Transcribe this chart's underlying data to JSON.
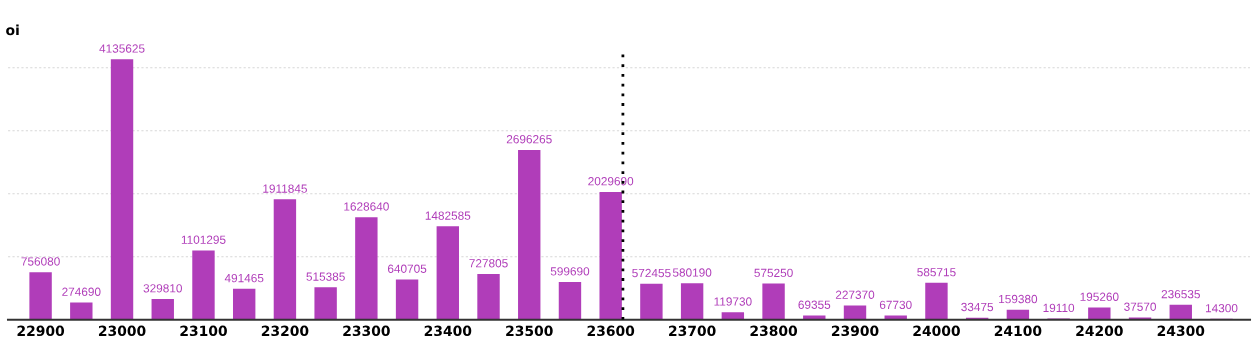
{
  "chart_data": {
    "type": "bar",
    "ylabel": "oi",
    "x": [
      22900,
      22950,
      23000,
      23050,
      23100,
      23150,
      23200,
      23250,
      23300,
      23350,
      23400,
      23450,
      23500,
      23550,
      23600,
      23650,
      23700,
      23750,
      23800,
      23850,
      23900,
      23950,
      24000,
      24050,
      24100,
      24150,
      24200,
      24250,
      24300,
      24350
    ],
    "values": [
      756080,
      274690,
      4135625,
      329810,
      1101295,
      491465,
      1911845,
      515385,
      1628640,
      640705,
      1482585,
      727805,
      2696265,
      599690,
      2029690,
      572455,
      580190,
      119730,
      575250,
      69355,
      227370,
      67730,
      585715,
      33475,
      159380,
      19110,
      195260,
      37570,
      236535,
      14300
    ],
    "color": "#b03db9",
    "data_labels": true,
    "xlim": [
      22860,
      24385
    ],
    "xticks": [
      22900,
      23000,
      23100,
      23200,
      23300,
      23400,
      23500,
      23600,
      23700,
      23800,
      23900,
      24000,
      24100,
      24200,
      24300
    ],
    "yticks": [
      {
        "value": 0,
        "label": null
      },
      {
        "value": 1000000,
        "label": null
      },
      {
        "value": 2000000,
        "label": null
      },
      {
        "value": 3000000,
        "label": null
      },
      {
        "value": 4000000,
        "label": null
      }
    ],
    "tick_labels": "x",
    "grid": "y",
    "ref_lines": [
      {
        "axis": "x",
        "value": 23615,
        "color": "#000000",
        "line_style": "dotted"
      }
    ]
  }
}
